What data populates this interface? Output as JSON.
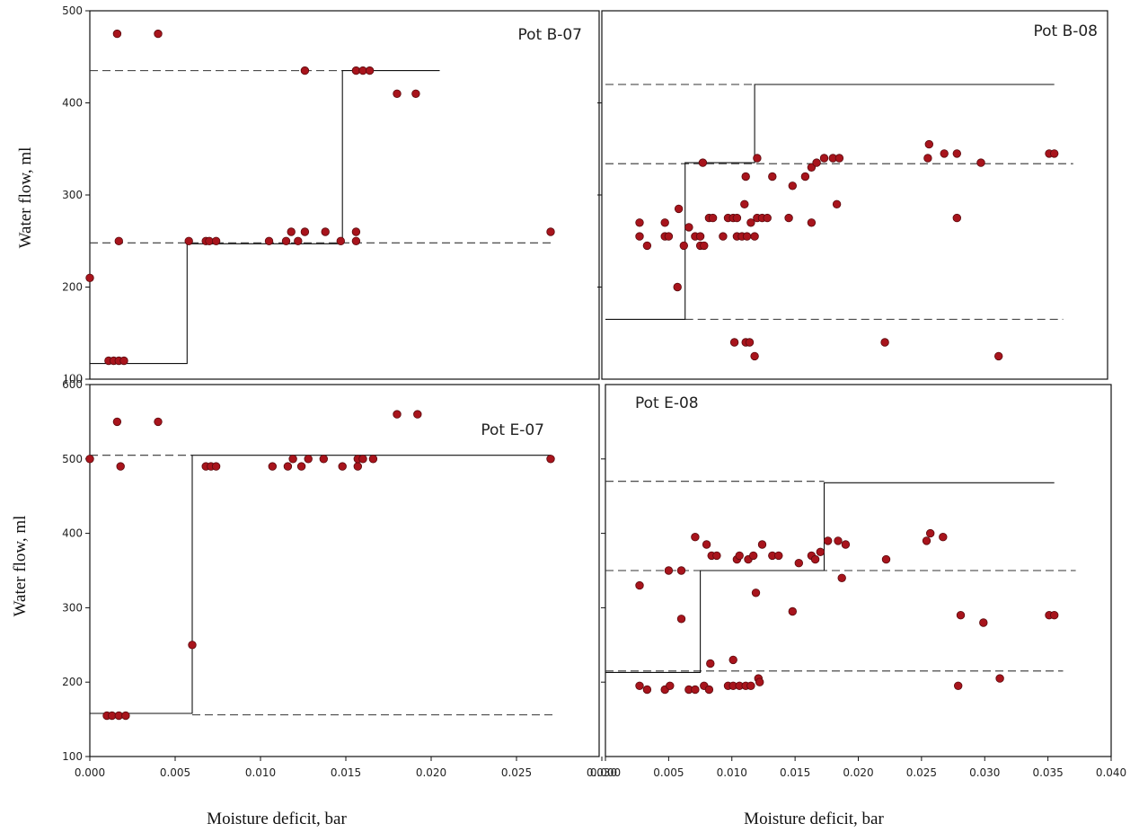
{
  "figure": {
    "ylabel_top": "Water flow, ml",
    "ylabel_bottom": "Water flow, ml",
    "xlabel_left": "Moisture deficit, bar",
    "xlabel_right": "Moisture deficit, bar"
  },
  "colors": {
    "points": "#a8141c",
    "lines": "#111111"
  },
  "chart_data": [
    {
      "id": "B07",
      "type": "scatter",
      "title": "Pot B-07",
      "ylim": [
        100,
        500
      ],
      "xlim": [
        0,
        0.03
      ],
      "yticks": [
        {
          "v": 100,
          "label": "100"
        },
        {
          "v": 200,
          "label": "200"
        },
        {
          "v": 300,
          "label": "300"
        },
        {
          "v": 400,
          "label": "400"
        },
        {
          "v": 500,
          "label": "500"
        }
      ],
      "xticks": [],
      "points": [
        [
          0.0,
          210
        ],
        [
          0.0011,
          120
        ],
        [
          0.0014,
          120
        ],
        [
          0.0017,
          120
        ],
        [
          0.002,
          120
        ],
        [
          0.0017,
          250
        ],
        [
          0.0016,
          475
        ],
        [
          0.004,
          475
        ],
        [
          0.0058,
          250
        ],
        [
          0.0068,
          250
        ],
        [
          0.007,
          250
        ],
        [
          0.0074,
          250
        ],
        [
          0.0105,
          250
        ],
        [
          0.0115,
          250
        ],
        [
          0.0118,
          260
        ],
        [
          0.0122,
          250
        ],
        [
          0.0126,
          260
        ],
        [
          0.0138,
          260
        ],
        [
          0.0147,
          250
        ],
        [
          0.0156,
          250
        ],
        [
          0.0156,
          260
        ],
        [
          0.0126,
          435
        ],
        [
          0.0156,
          435
        ],
        [
          0.016,
          435
        ],
        [
          0.0164,
          435
        ],
        [
          0.018,
          410
        ],
        [
          0.0191,
          410
        ],
        [
          0.027,
          260
        ]
      ],
      "step_lines": [
        {
          "style": "solid",
          "points": [
            [
              0.0,
              117
            ],
            [
              0.0057,
              117
            ],
            [
              0.0057,
              247
            ],
            [
              0.0148,
              247
            ],
            [
              0.0148,
              435
            ],
            [
              0.0205,
              435
            ]
          ]
        }
      ],
      "mean_lines": [
        {
          "style": "dashed",
          "y": 435,
          "x": [
            0.0,
            0.0148
          ]
        },
        {
          "style": "dashed",
          "y": 248,
          "x": [
            0.0,
            0.0272
          ]
        }
      ]
    },
    {
      "id": "B08",
      "type": "scatter",
      "title": "Pot B-08",
      "ylim": [
        100,
        500
      ],
      "xlim": [
        0,
        0.04
      ],
      "yticks": [
        {
          "v": 200,
          "label": ""
        },
        {
          "v": 300,
          "label": ""
        },
        {
          "v": 400,
          "label": ""
        }
      ],
      "xticks": [],
      "points": [
        [
          0.0027,
          270
        ],
        [
          0.0027,
          255
        ],
        [
          0.0033,
          245
        ],
        [
          0.0047,
          270
        ],
        [
          0.0047,
          255
        ],
        [
          0.005,
          255
        ],
        [
          0.0057,
          200
        ],
        [
          0.0058,
          285
        ],
        [
          0.0062,
          245
        ],
        [
          0.0066,
          265
        ],
        [
          0.0071,
          255
        ],
        [
          0.0075,
          255
        ],
        [
          0.0075,
          245
        ],
        [
          0.0078,
          245
        ],
        [
          0.0082,
          275
        ],
        [
          0.0085,
          275
        ],
        [
          0.0093,
          255
        ],
        [
          0.0097,
          275
        ],
        [
          0.0101,
          275
        ],
        [
          0.0104,
          275
        ],
        [
          0.0104,
          255
        ],
        [
          0.0108,
          255
        ],
        [
          0.011,
          290
        ],
        [
          0.0112,
          255
        ],
        [
          0.0115,
          270
        ],
        [
          0.0118,
          255
        ],
        [
          0.012,
          275
        ],
        [
          0.0124,
          275
        ],
        [
          0.0128,
          275
        ],
        [
          0.0132,
          320
        ],
        [
          0.0148,
          310
        ],
        [
          0.0158,
          320
        ],
        [
          0.0163,
          330
        ],
        [
          0.0167,
          335
        ],
        [
          0.0173,
          340
        ],
        [
          0.018,
          340
        ],
        [
          0.0185,
          340
        ],
        [
          0.0111,
          320
        ],
        [
          0.012,
          340
        ],
        [
          0.0077,
          335
        ],
        [
          0.0145,
          275
        ],
        [
          0.0163,
          270
        ],
        [
          0.0183,
          290
        ],
        [
          0.0102,
          140
        ],
        [
          0.0111,
          140
        ],
        [
          0.0114,
          140
        ],
        [
          0.0118,
          125
        ],
        [
          0.0221,
          140
        ],
        [
          0.0255,
          340
        ],
        [
          0.0256,
          355
        ],
        [
          0.0268,
          345
        ],
        [
          0.0278,
          345
        ],
        [
          0.0297,
          335
        ],
        [
          0.0278,
          275
        ],
        [
          0.0311,
          125
        ],
        [
          0.0351,
          345
        ],
        [
          0.0355,
          345
        ]
      ],
      "step_lines": [
        {
          "style": "solid",
          "points": [
            [
              0.0,
              165
            ],
            [
              0.0063,
              165
            ],
            [
              0.0063,
              335
            ],
            [
              0.0118,
              335
            ],
            [
              0.0118,
              420
            ],
            [
              0.0355,
              420
            ]
          ]
        }
      ],
      "mean_lines": [
        {
          "style": "dashed",
          "y": 420,
          "x": [
            0.0,
            0.0118
          ]
        },
        {
          "style": "dashed",
          "y": 334,
          "x": [
            0.0,
            0.037
          ]
        },
        {
          "style": "dashed",
          "y": 165,
          "x": [
            0.0063,
            0.0362
          ]
        }
      ]
    },
    {
      "id": "E07",
      "type": "scatter",
      "title": "Pot E-07",
      "ylim": [
        100,
        600
      ],
      "xlim": [
        0,
        0.03
      ],
      "yticks": [
        {
          "v": 100,
          "label": "100"
        },
        {
          "v": 200,
          "label": "200"
        },
        {
          "v": 300,
          "label": "300"
        },
        {
          "v": 400,
          "label": "400"
        },
        {
          "v": 500,
          "label": "500"
        },
        {
          "v": 600,
          "label": "600"
        }
      ],
      "xticks": [
        {
          "v": 0.0,
          "label": "0.000"
        },
        {
          "v": 0.005,
          "label": "0.005"
        },
        {
          "v": 0.01,
          "label": "0.010"
        },
        {
          "v": 0.015,
          "label": "0.015"
        },
        {
          "v": 0.02,
          "label": "0.020"
        },
        {
          "v": 0.025,
          "label": "0.025"
        },
        {
          "v": 0.03,
          "label": "0.030"
        }
      ],
      "points": [
        [
          0.0,
          500
        ],
        [
          0.001,
          155
        ],
        [
          0.0013,
          155
        ],
        [
          0.0017,
          155
        ],
        [
          0.0021,
          155
        ],
        [
          0.0016,
          550
        ],
        [
          0.0018,
          490
        ],
        [
          0.004,
          550
        ],
        [
          0.006,
          250
        ],
        [
          0.0068,
          490
        ],
        [
          0.0071,
          490
        ],
        [
          0.0074,
          490
        ],
        [
          0.0107,
          490
        ],
        [
          0.0116,
          490
        ],
        [
          0.0119,
          500
        ],
        [
          0.0124,
          490
        ],
        [
          0.0128,
          500
        ],
        [
          0.0137,
          500
        ],
        [
          0.0148,
          490
        ],
        [
          0.0157,
          490
        ],
        [
          0.0157,
          500
        ],
        [
          0.016,
          500
        ],
        [
          0.0166,
          500
        ],
        [
          0.018,
          560
        ],
        [
          0.0192,
          560
        ],
        [
          0.027,
          500
        ]
      ],
      "step_lines": [
        {
          "style": "solid",
          "points": [
            [
              0.0,
              158
            ],
            [
              0.006,
              158
            ],
            [
              0.006,
              505
            ],
            [
              0.027,
              505
            ]
          ]
        }
      ],
      "mean_lines": [
        {
          "style": "dashed",
          "y": 505,
          "x": [
            0.0,
            0.006
          ]
        },
        {
          "style": "dashed",
          "y": 156,
          "x": [
            0.006,
            0.0272
          ]
        }
      ]
    },
    {
      "id": "E08",
      "type": "scatter",
      "title": "Pot E-08",
      "ylim": [
        100,
        600
      ],
      "xlim": [
        0,
        0.04
      ],
      "yticks": [
        {
          "v": 200,
          "label": ""
        },
        {
          "v": 300,
          "label": ""
        },
        {
          "v": 400,
          "label": ""
        },
        {
          "v": 500,
          "label": ""
        }
      ],
      "xticks": [
        {
          "v": 0.0,
          "label": "0.000"
        },
        {
          "v": 0.005,
          "label": "0.005"
        },
        {
          "v": 0.01,
          "label": "0.010"
        },
        {
          "v": 0.015,
          "label": "0.015"
        },
        {
          "v": 0.02,
          "label": "0.020"
        },
        {
          "v": 0.025,
          "label": "0.025"
        },
        {
          "v": 0.03,
          "label": "0.030"
        },
        {
          "v": 0.035,
          "label": "0.035"
        },
        {
          "v": 0.04,
          "label": "0.040"
        }
      ],
      "points": [
        [
          0.0027,
          330
        ],
        [
          0.0027,
          195
        ],
        [
          0.0033,
          190
        ],
        [
          0.0047,
          190
        ],
        [
          0.0051,
          195
        ],
        [
          0.005,
          350
        ],
        [
          0.006,
          350
        ],
        [
          0.006,
          285
        ],
        [
          0.0066,
          190
        ],
        [
          0.0071,
          190
        ],
        [
          0.0071,
          395
        ],
        [
          0.0078,
          195
        ],
        [
          0.008,
          385
        ],
        [
          0.0082,
          190
        ],
        [
          0.0083,
          225
        ],
        [
          0.0084,
          370
        ],
        [
          0.0088,
          370
        ],
        [
          0.0097,
          195
        ],
        [
          0.0101,
          195
        ],
        [
          0.0101,
          230
        ],
        [
          0.0104,
          365
        ],
        [
          0.0106,
          370
        ],
        [
          0.0106,
          195
        ],
        [
          0.0111,
          195
        ],
        [
          0.0113,
          365
        ],
        [
          0.0115,
          195
        ],
        [
          0.0117,
          370
        ],
        [
          0.0119,
          320
        ],
        [
          0.0121,
          205
        ],
        [
          0.0122,
          200
        ],
        [
          0.0124,
          385
        ],
        [
          0.0132,
          370
        ],
        [
          0.0137,
          370
        ],
        [
          0.0148,
          295
        ],
        [
          0.0153,
          360
        ],
        [
          0.0163,
          370
        ],
        [
          0.0166,
          365
        ],
        [
          0.017,
          375
        ],
        [
          0.0176,
          390
        ],
        [
          0.0184,
          390
        ],
        [
          0.0187,
          340
        ],
        [
          0.019,
          385
        ],
        [
          0.0222,
          365
        ],
        [
          0.0254,
          390
        ],
        [
          0.0257,
          400
        ],
        [
          0.0267,
          395
        ],
        [
          0.0279,
          195
        ],
        [
          0.0281,
          290
        ],
        [
          0.0299,
          280
        ],
        [
          0.0312,
          205
        ],
        [
          0.0351,
          290
        ],
        [
          0.0355,
          290
        ]
      ],
      "step_lines": [
        {
          "style": "solid",
          "points": [
            [
              0.0,
              213
            ],
            [
              0.0075,
              213
            ],
            [
              0.0075,
              350
            ],
            [
              0.0173,
              350
            ],
            [
              0.0173,
              468
            ],
            [
              0.0355,
              468
            ]
          ]
        }
      ],
      "mean_lines": [
        {
          "style": "dashed",
          "y": 470,
          "x": [
            0.0,
            0.0173
          ]
        },
        {
          "style": "dashed",
          "y": 350,
          "x": [
            0.0,
            0.0372
          ]
        },
        {
          "style": "dashed",
          "y": 215,
          "x": [
            0.0,
            0.0362
          ]
        }
      ]
    }
  ]
}
